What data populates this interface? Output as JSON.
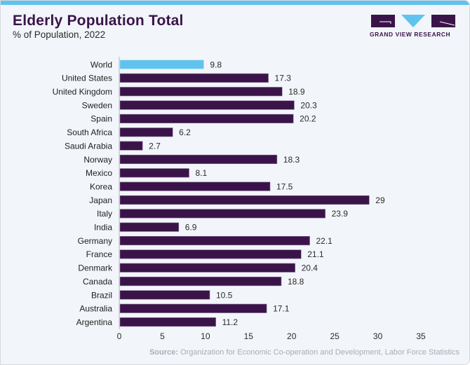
{
  "header": {
    "title": "Elderly Population Total",
    "subtitle": "% of Population, 2022"
  },
  "brand": {
    "name": "GRAND VIEW RESEARCH",
    "colors": {
      "primary": "#3a1449",
      "accent": "#5fc3ee"
    }
  },
  "footer": {
    "source_label": "Source:",
    "source_text": "Organization for Economic Co-operation and Development, Labor Force Statistics"
  },
  "chart_data": {
    "type": "bar",
    "orientation": "horizontal",
    "title": "Elderly Population Total",
    "subtitle": "% of Population, 2022",
    "xlabel": "",
    "ylabel": "",
    "xlim": [
      0,
      35
    ],
    "xticks": [
      0,
      5,
      10,
      15,
      20,
      25,
      30,
      35
    ],
    "grid": false,
    "legend": "none",
    "highlight_color": "#5fc3ee",
    "bar_color": "#3a1449",
    "categories": [
      "World",
      "United States",
      "United Kingdom",
      "Sweden",
      "Spain",
      "South Africa",
      "Saudi Arabia",
      "Norway",
      "Mexico",
      "Korea",
      "Japan",
      "Italy",
      "India",
      "Germany",
      "France",
      "Denmark",
      "Canada",
      "Brazil",
      "Australia",
      "Argentina"
    ],
    "values": [
      9.8,
      17.3,
      18.9,
      20.3,
      20.2,
      6.2,
      2.7,
      18.3,
      8.1,
      17.5,
      29,
      23.9,
      6.9,
      22.1,
      21.1,
      20.4,
      18.8,
      10.5,
      17.1,
      11.2
    ],
    "value_labels": [
      "9.8",
      "17.3",
      "18.9",
      "20.3",
      "20.2",
      "6.2",
      "2.7",
      "18.3",
      "8.1",
      "17.5",
      "29",
      "23.9",
      "6.9",
      "22.1",
      "21.1",
      "20.4",
      "18.8",
      "10.5",
      "17.1",
      "11.2"
    ],
    "highlighted": [
      "World"
    ]
  }
}
